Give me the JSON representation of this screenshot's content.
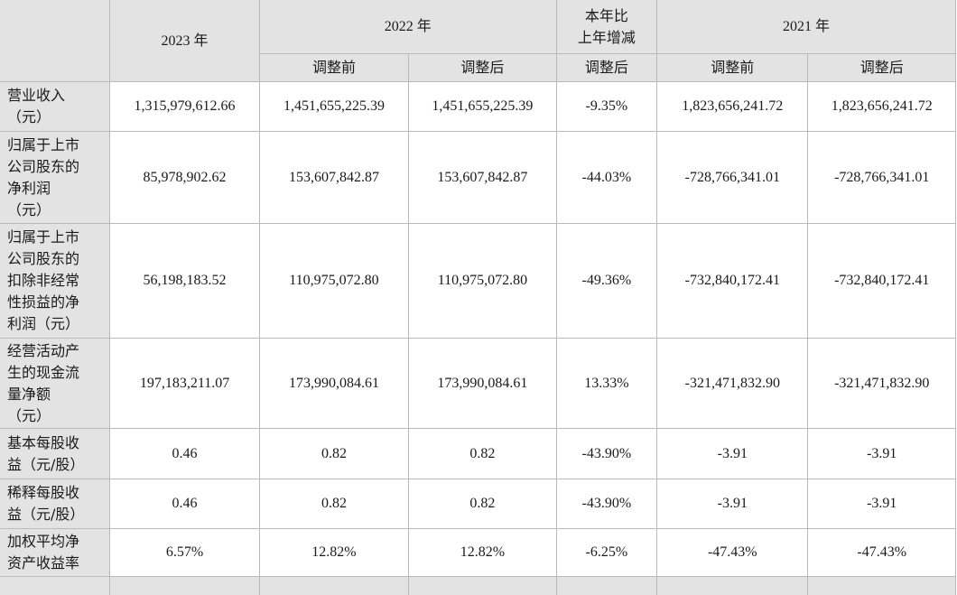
{
  "header": {
    "year_2023": "2023 年",
    "year_2022": "2022 年",
    "change": [
      "本年比",
      "上年增减"
    ],
    "year_2021": "2021 年",
    "sub": [
      "调整前",
      "调整后",
      "调整后",
      "调整前",
      "调整后"
    ]
  },
  "rows": [
    {
      "label": [
        "营业收入",
        "（元）"
      ],
      "values": [
        "1,315,979,612.66",
        "1,451,655,225.39",
        "1,451,655,225.39",
        "-9.35%",
        "1,823,656,241.72",
        "1,823,656,241.72"
      ]
    },
    {
      "label": [
        "归属于上市",
        "公司股东的",
        "净利润",
        "（元）"
      ],
      "values": [
        "85,978,902.62",
        "153,607,842.87",
        "153,607,842.87",
        "-44.03%",
        "-728,766,341.01",
        "-728,766,341.01"
      ]
    },
    {
      "label": [
        "归属于上市",
        "公司股东的",
        "扣除非经常",
        "性损益的净",
        "利润（元）"
      ],
      "values": [
        "56,198,183.52",
        "110,975,072.80",
        "110,975,072.80",
        "-49.36%",
        "-732,840,172.41",
        "-732,840,172.41"
      ]
    },
    {
      "label": [
        "经营活动产",
        "生的现金流",
        "量净额",
        "（元）"
      ],
      "values": [
        "197,183,211.07",
        "173,990,084.61",
        "173,990,084.61",
        "13.33%",
        "-321,471,832.90",
        "-321,471,832.90"
      ]
    },
    {
      "label": [
        "基本每股收",
        "益（元/股）"
      ],
      "values": [
        "0.46",
        "0.82",
        "0.82",
        "-43.90%",
        "-3.91",
        "-3.91"
      ]
    },
    {
      "label": [
        "稀释每股收",
        "益（元/股）"
      ],
      "values": [
        "0.46",
        "0.82",
        "0.82",
        "-43.90%",
        "-3.91",
        "-3.91"
      ]
    },
    {
      "label": [
        "加权平均净",
        "资产收益率"
      ],
      "values": [
        "6.57%",
        "12.82%",
        "12.82%",
        "-6.25%",
        "-47.43%",
        "-47.43%"
      ]
    }
  ]
}
